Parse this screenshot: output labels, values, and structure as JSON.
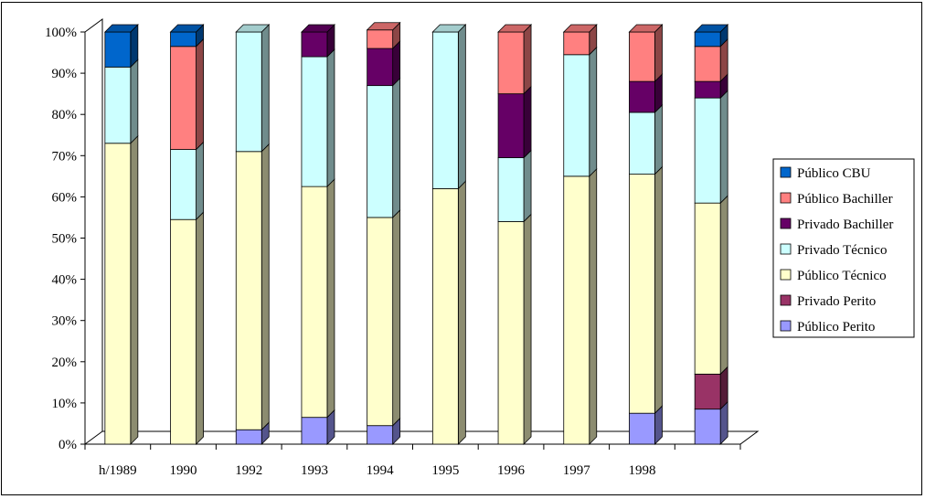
{
  "chart_data": {
    "type": "bar",
    "stacked": true,
    "percent": true,
    "three_d": true,
    "categories": [
      "h/1989",
      "1990",
      "1992",
      "1993",
      "1994",
      "1995",
      "1996",
      "1997",
      "1998",
      ""
    ],
    "y_ticks": [
      "0%",
      "10%",
      "20%",
      "30%",
      "40%",
      "50%",
      "60%",
      "70%",
      "80%",
      "90%",
      "100%"
    ],
    "ylim": [
      0,
      100
    ],
    "legend_position": "right",
    "series": [
      {
        "name": "Público Perito",
        "color": "#9999FF",
        "values": [
          0,
          0,
          3.5,
          6.5,
          4.5,
          0,
          0,
          0,
          7.5,
          8.5
        ]
      },
      {
        "name": "Privado Perito",
        "color": "#993366",
        "values": [
          0,
          0,
          0,
          0,
          0,
          0,
          0,
          0,
          0,
          8.5
        ]
      },
      {
        "name": "Público Técnico",
        "color": "#FFFFCC",
        "values": [
          73,
          54.5,
          67.5,
          56,
          50.5,
          62,
          54,
          65,
          58,
          41.5
        ]
      },
      {
        "name": "Privado Técnico",
        "color": "#CCFFFF",
        "values": [
          18.5,
          17,
          29,
          31.5,
          32,
          38,
          15.5,
          29.5,
          15,
          25.5
        ]
      },
      {
        "name": "Privado Bachiller",
        "color": "#660066",
        "values": [
          0,
          0,
          0,
          6,
          9,
          0,
          15.5,
          0,
          7.5,
          4
        ]
      },
      {
        "name": "Público Bachiller",
        "color": "#FF8080",
        "values": [
          0,
          25,
          0,
          0,
          4.5,
          0,
          15,
          5.5,
          12,
          8.5
        ]
      },
      {
        "name": "Público CBU",
        "color": "#0066CC",
        "values": [
          8.5,
          3.5,
          0,
          0,
          0,
          0,
          0,
          0,
          0,
          3.5
        ]
      }
    ]
  }
}
